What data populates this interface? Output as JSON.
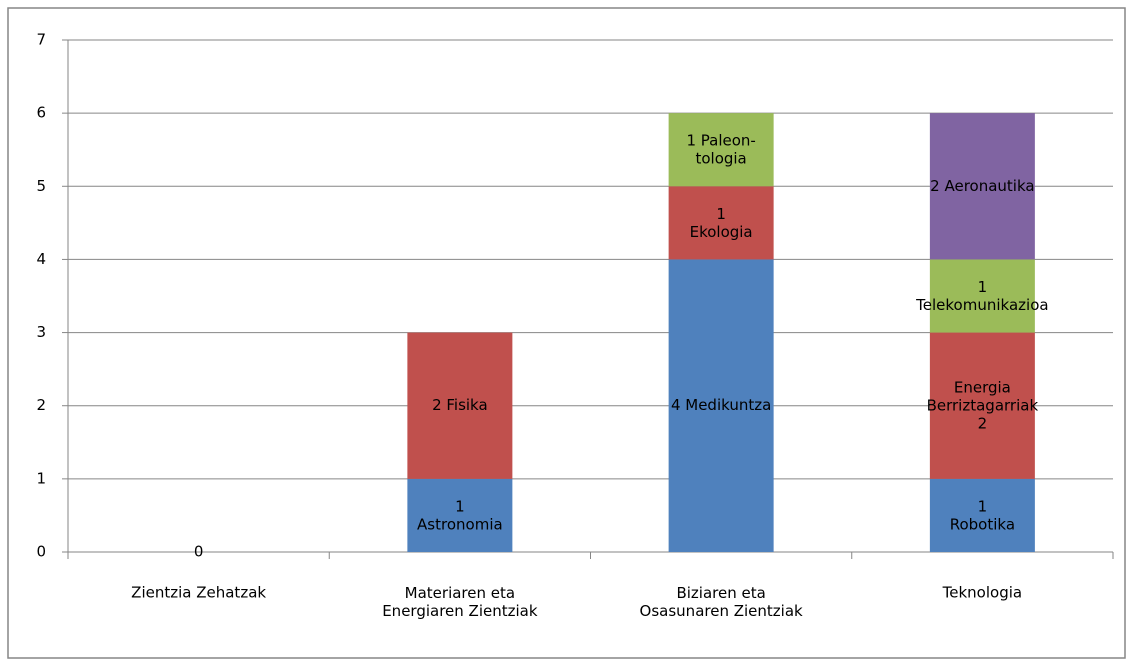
{
  "chart_data": {
    "type": "stacked_bar",
    "categories": [
      "Zientzia Zehatzak",
      "Materiaren eta\nEnergiaren Zientziak",
      "Biziaren eta\nOsasunaren Zientziak",
      "Teknologia"
    ],
    "series": [
      {
        "color": "#4f81bd",
        "values": [
          0,
          1,
          4,
          1
        ],
        "value_labels": [
          "0",
          "1\nAstronomia",
          "4 Medikuntza",
          "1\nRobotika"
        ]
      },
      {
        "color": "#c0504d",
        "values": [
          null,
          2,
          1,
          2
        ],
        "value_labels": [
          null,
          "2 Fisika",
          "1\nEkologia",
          "Energia\nBerriztagarriak\n2"
        ]
      },
      {
        "color": "#9bbb59",
        "values": [
          null,
          null,
          1,
          1
        ],
        "value_labels": [
          null,
          null,
          "1 Paleon-\ntologia",
          "1\nTelekomunikazioa"
        ]
      },
      {
        "color": "#8064a2",
        "values": [
          null,
          null,
          null,
          2
        ],
        "value_labels": [
          null,
          null,
          null,
          "2  Aeronautika"
        ]
      }
    ],
    "ylim": [
      0,
      7
    ],
    "yticks": [
      0,
      1,
      2,
      3,
      4,
      5,
      6,
      7
    ],
    "grid": true
  }
}
